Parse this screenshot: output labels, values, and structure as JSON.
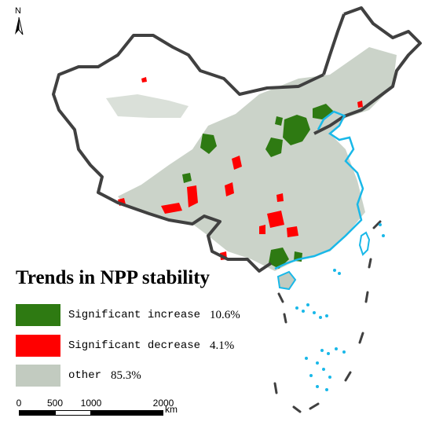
{
  "north_arrow": {
    "label": "N"
  },
  "legend": {
    "title": "Trends in NPP stability",
    "items": [
      {
        "label": "Significant increase",
        "value": "10.6%",
        "color": "#2e7a12"
      },
      {
        "label": "Significant decrease",
        "value": "4.1%",
        "color": "#ff0000"
      },
      {
        "label": "other",
        "value": "85.3%",
        "color": "#c2cbc0"
      }
    ]
  },
  "scale_bar": {
    "ticks": [
      "0",
      "500",
      "1000",
      "2000"
    ],
    "unit": "km"
  },
  "colors": {
    "border": "#404040",
    "coast": "#19b8e8",
    "other": "#c2cbc0",
    "increase": "#2e7a12",
    "decrease": "#ff0000"
  }
}
